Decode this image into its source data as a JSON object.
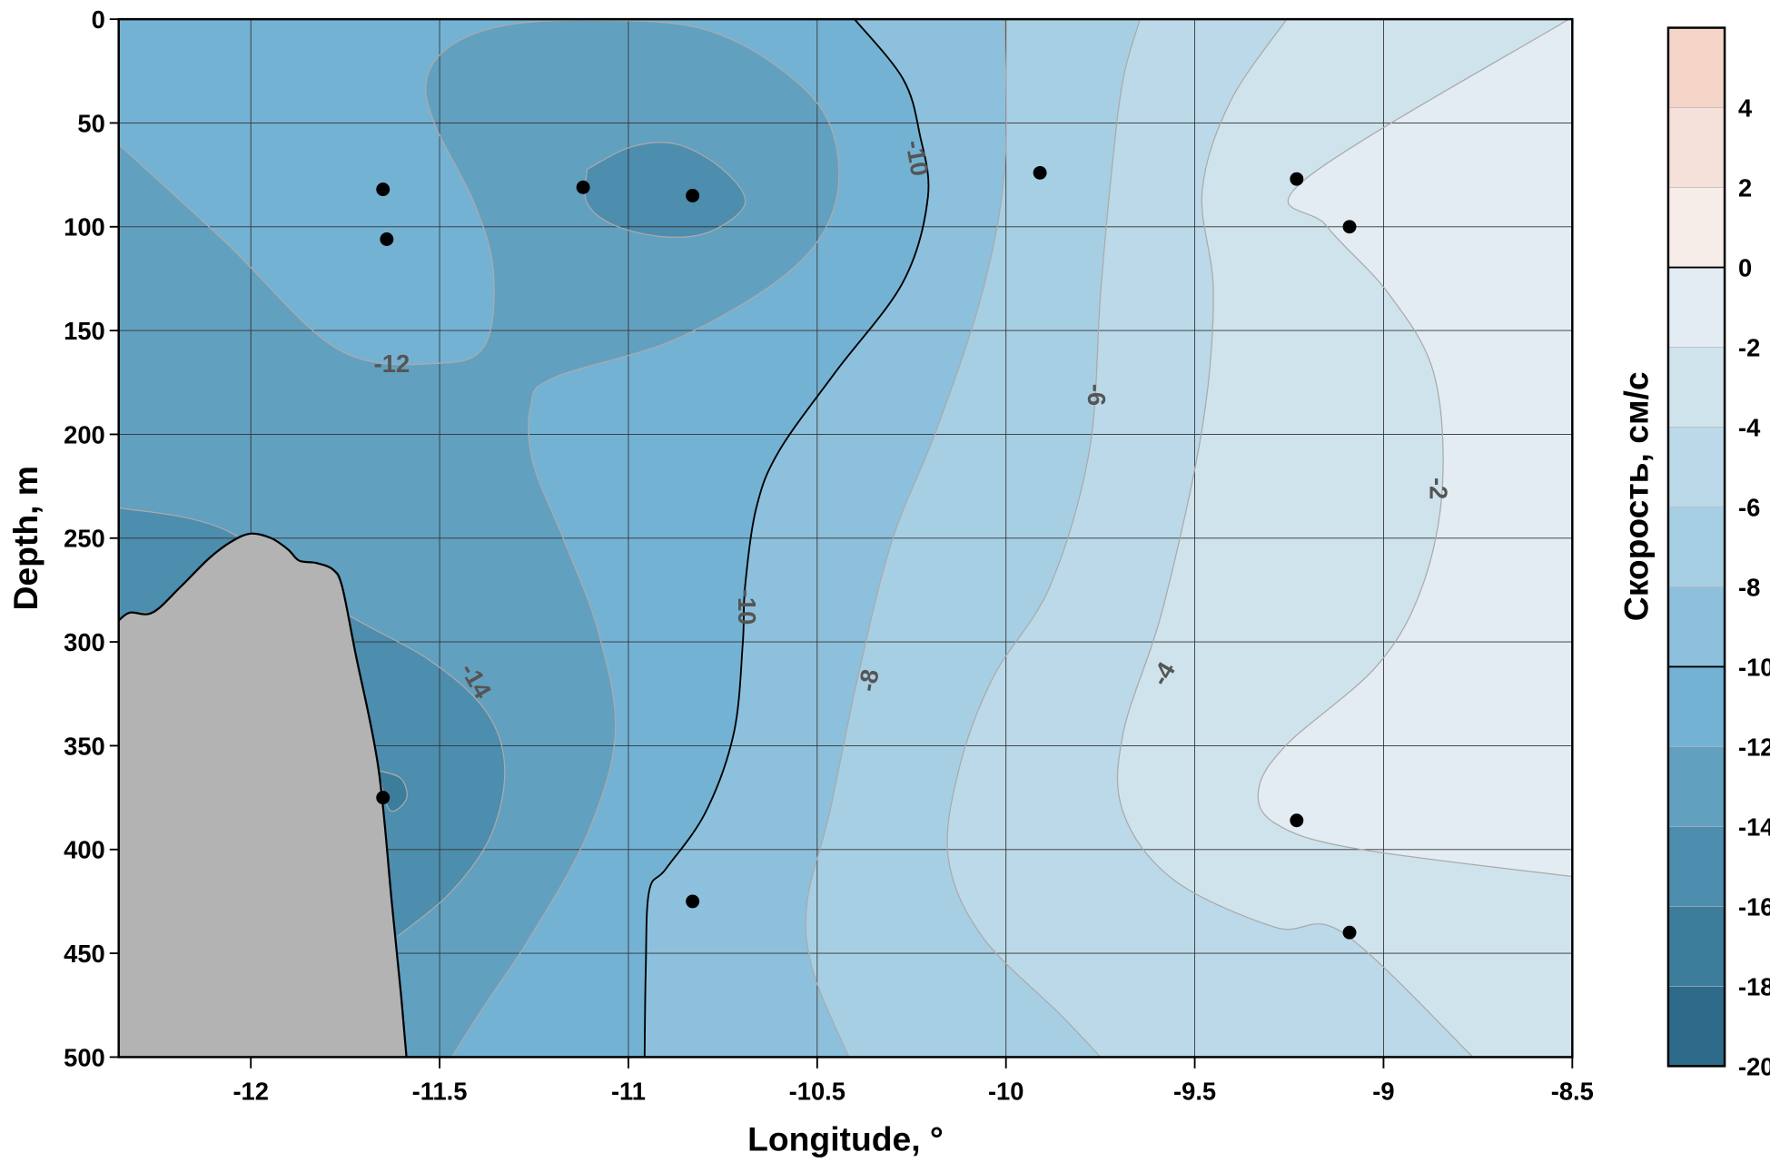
{
  "chart_data": {
    "type": "contour",
    "xlabel": "Longitude, °",
    "ylabel": "Depth, m",
    "xlim": [
      -12.35,
      -8.5
    ],
    "ylim": [
      500,
      0
    ],
    "x_ticks": [
      "-12",
      "-11.5",
      "-11",
      "-10.5",
      "-10",
      "-9.5",
      "-9",
      "-8.5"
    ],
    "x_tick_values": [
      -12,
      -11.5,
      -11,
      -10.5,
      -10,
      -9.5,
      -9,
      -8.5
    ],
    "y_ticks": [
      "0",
      "50",
      "100",
      "150",
      "200",
      "250",
      "300",
      "350",
      "400",
      "450",
      "500"
    ],
    "y_tick_values": [
      0,
      50,
      100,
      150,
      200,
      250,
      300,
      350,
      400,
      450,
      500
    ],
    "grid": true,
    "colorbar": {
      "title": "Скорость, см/с",
      "ticks": [
        "4",
        "2",
        "0",
        "-2",
        "-4",
        "-6",
        "-8",
        "-10",
        "-12",
        "-14",
        "-16",
        "-18",
        "-20"
      ],
      "tick_values": [
        4,
        2,
        0,
        -2,
        -4,
        -6,
        -8,
        -10,
        -12,
        -14,
        -16,
        -18,
        -20
      ],
      "range": [
        -20,
        6
      ],
      "levels": [
        {
          "from": 4,
          "to": 6,
          "color": "#f4d5c8"
        },
        {
          "from": 2,
          "to": 4,
          "color": "#f5e1d9"
        },
        {
          "from": 0,
          "to": 2,
          "color": "#f6ede8"
        },
        {
          "from": -2,
          "to": 0,
          "color": "#e2ecf2"
        },
        {
          "from": -4,
          "to": -2,
          "color": "#cfe3ec"
        },
        {
          "from": -6,
          "to": -4,
          "color": "#bbd9e8"
        },
        {
          "from": -8,
          "to": -6,
          "color": "#a7cfe3"
        },
        {
          "from": -10,
          "to": -8,
          "color": "#8dc0dc"
        },
        {
          "from": -12,
          "to": -10,
          "color": "#74b2d4"
        },
        {
          "from": -14,
          "to": -12,
          "color": "#62a0c0"
        },
        {
          "from": -16,
          "to": -14,
          "color": "#4d8dad"
        },
        {
          "from": -18,
          "to": -16,
          "color": "#3d7d9c"
        },
        {
          "from": -20,
          "to": -18,
          "color": "#2e6b8a"
        }
      ],
      "highlighted_lines": [
        0,
        -10
      ]
    },
    "contour_labels": [
      "-10",
      "-12",
      "-14",
      "-10",
      "-8",
      "-6",
      "-4",
      "-2"
    ],
    "stations": [
      {
        "lon": -11.65,
        "depth": 82
      },
      {
        "lon": -11.64,
        "depth": 106
      },
      {
        "lon": -11.12,
        "depth": 81
      },
      {
        "lon": -10.83,
        "depth": 85
      },
      {
        "lon": -9.91,
        "depth": 74
      },
      {
        "lon": -9.23,
        "depth": 77
      },
      {
        "lon": -9.09,
        "depth": 100
      },
      {
        "lon": -11.65,
        "depth": 375
      },
      {
        "lon": -10.83,
        "depth": 425
      },
      {
        "lon": -9.23,
        "depth": 386
      },
      {
        "lon": -9.09,
        "depth": 440
      }
    ],
    "land_color": "#b3b3b3"
  }
}
